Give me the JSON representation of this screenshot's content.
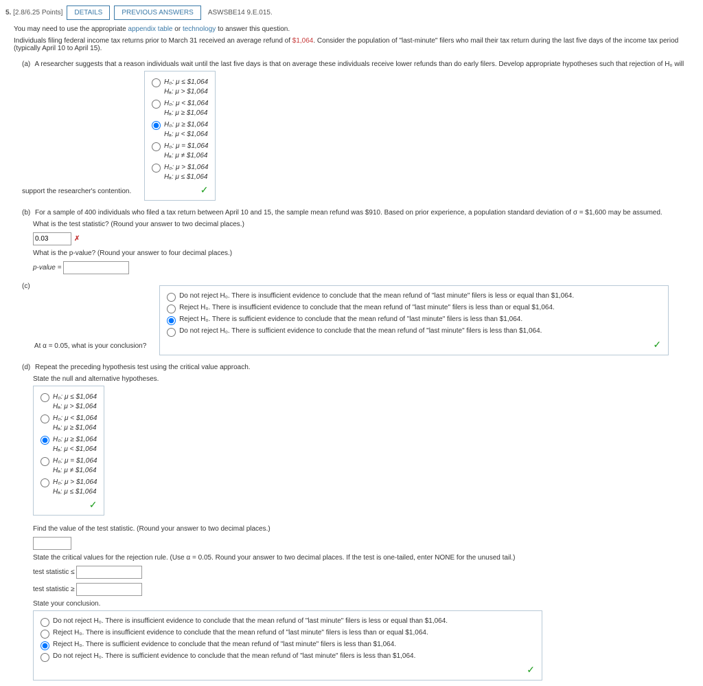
{
  "header": {
    "num": "5.",
    "points": "[2.8/6.25 Points]",
    "details": "DETAILS",
    "prev": "PREVIOUS ANSWERS",
    "ref": "ASWSBE14 9.E.015."
  },
  "intro": {
    "l1a": "You may need to use the appropriate ",
    "l1b": "appendix table",
    "l1c": " or ",
    "l1d": "technology",
    "l1e": " to answer this question.",
    "l2a": "Individuals filing federal income tax returns prior to March 31 received an average refund of ",
    "l2b": "$1,064",
    "l2c": ". Consider the population of \"last-minute\" filers who mail their tax return during the last five days of the income tax period (typically April 10 to April 15)."
  },
  "a": {
    "label": "(a)",
    "text": "A researcher suggests that a reason individuals wait until the last five days is that on average these individuals receive lower refunds than do early filers. Develop appropriate hypotheses such that rejection of H₀ will support the researcher's contention.",
    "opts": [
      {
        "h0": "H₀: μ ≤ $1,064",
        "ha": "Hₐ: μ > $1,064",
        "sel": false
      },
      {
        "h0": "H₀: μ < $1,064",
        "ha": "Hₐ: μ ≥ $1,064",
        "sel": false
      },
      {
        "h0": "H₀: μ ≥ $1,064",
        "ha": "Hₐ: μ < $1,064",
        "sel": true
      },
      {
        "h0": "H₀: μ = $1,064",
        "ha": "Hₐ: μ ≠ $1,064",
        "sel": false
      },
      {
        "h0": "H₀: μ > $1,064",
        "ha": "Hₐ: μ ≤ $1,064",
        "sel": false
      }
    ]
  },
  "b": {
    "label": "(b)",
    "text": "For a sample of 400 individuals who filed a tax return between April 10 and 15, the sample mean refund was $910. Based on prior experience, a population standard deviation of σ = $1,600 may be assumed.",
    "q1": "What is the test statistic? (Round your answer to two decimal places.)",
    "val": "0.03",
    "q2": "What is the p-value? (Round your answer to four decimal places.)",
    "plabel": "p-value ="
  },
  "c": {
    "label": "(c)",
    "text": "At α = 0.05, what is your conclusion?",
    "opts": [
      {
        "t": "Do not reject H₀. There is insufficient evidence to conclude that the mean refund of \"last minute\" filers is less or equal than $1,064.",
        "sel": false
      },
      {
        "t": "Reject H₀. There is insufficient evidence to conclude that the mean refund of \"last minute\" filers is less than or equal $1,064.",
        "sel": false
      },
      {
        "t": "Reject H₀. There is sufficient evidence to conclude that the mean refund of \"last minute\" filers is less than $1,064.",
        "sel": true
      },
      {
        "t": "Do not reject H₀. There is sufficient evidence to conclude that the mean refund of \"last minute\" filers is less than $1,064.",
        "sel": false
      }
    ]
  },
  "d": {
    "label": "(d)",
    "l1": "Repeat the preceding hypothesis test using the critical value approach.",
    "l2": "State the null and alternative hypotheses.",
    "opts": [
      {
        "h0": "H₀: μ ≤ $1,064",
        "ha": "Hₐ: μ > $1,064",
        "sel": false
      },
      {
        "h0": "H₀: μ < $1,064",
        "ha": "Hₐ: μ ≥ $1,064",
        "sel": false
      },
      {
        "h0": "H₀: μ ≥ $1,064",
        "ha": "Hₐ: μ < $1,064",
        "sel": true
      },
      {
        "h0": "H₀: μ = $1,064",
        "ha": "Hₐ: μ ≠ $1,064",
        "sel": false
      },
      {
        "h0": "H₀: μ > $1,064",
        "ha": "Hₐ: μ ≤ $1,064",
        "sel": false
      }
    ],
    "q3": "Find the value of the test statistic. (Round your answer to two decimal places.)",
    "q4": "State the critical values for the rejection rule. (Use α = 0.05. Round your answer to two decimal places. If the test is one-tailed, enter NONE for the unused tail.)",
    "cv1": "test statistic ≤",
    "cv2": "test statistic ≥",
    "q5": "State your conclusion.",
    "concl": [
      {
        "t": "Do not reject H₀. There is insufficient evidence to conclude that the mean refund of \"last minute\" filers is less or equal than $1,064.",
        "sel": false
      },
      {
        "t": "Reject H₀. There is insufficient evidence to conclude that the mean refund of \"last minute\" filers is less than or equal $1,064.",
        "sel": false
      },
      {
        "t": "Reject H₀. There is sufficient evidence to conclude that the mean refund of \"last minute\" filers is less than $1,064.",
        "sel": true
      },
      {
        "t": "Do not reject H₀. There is sufficient evidence to conclude that the mean refund of \"last minute\" filers is less than $1,064.",
        "sel": false
      }
    ]
  }
}
